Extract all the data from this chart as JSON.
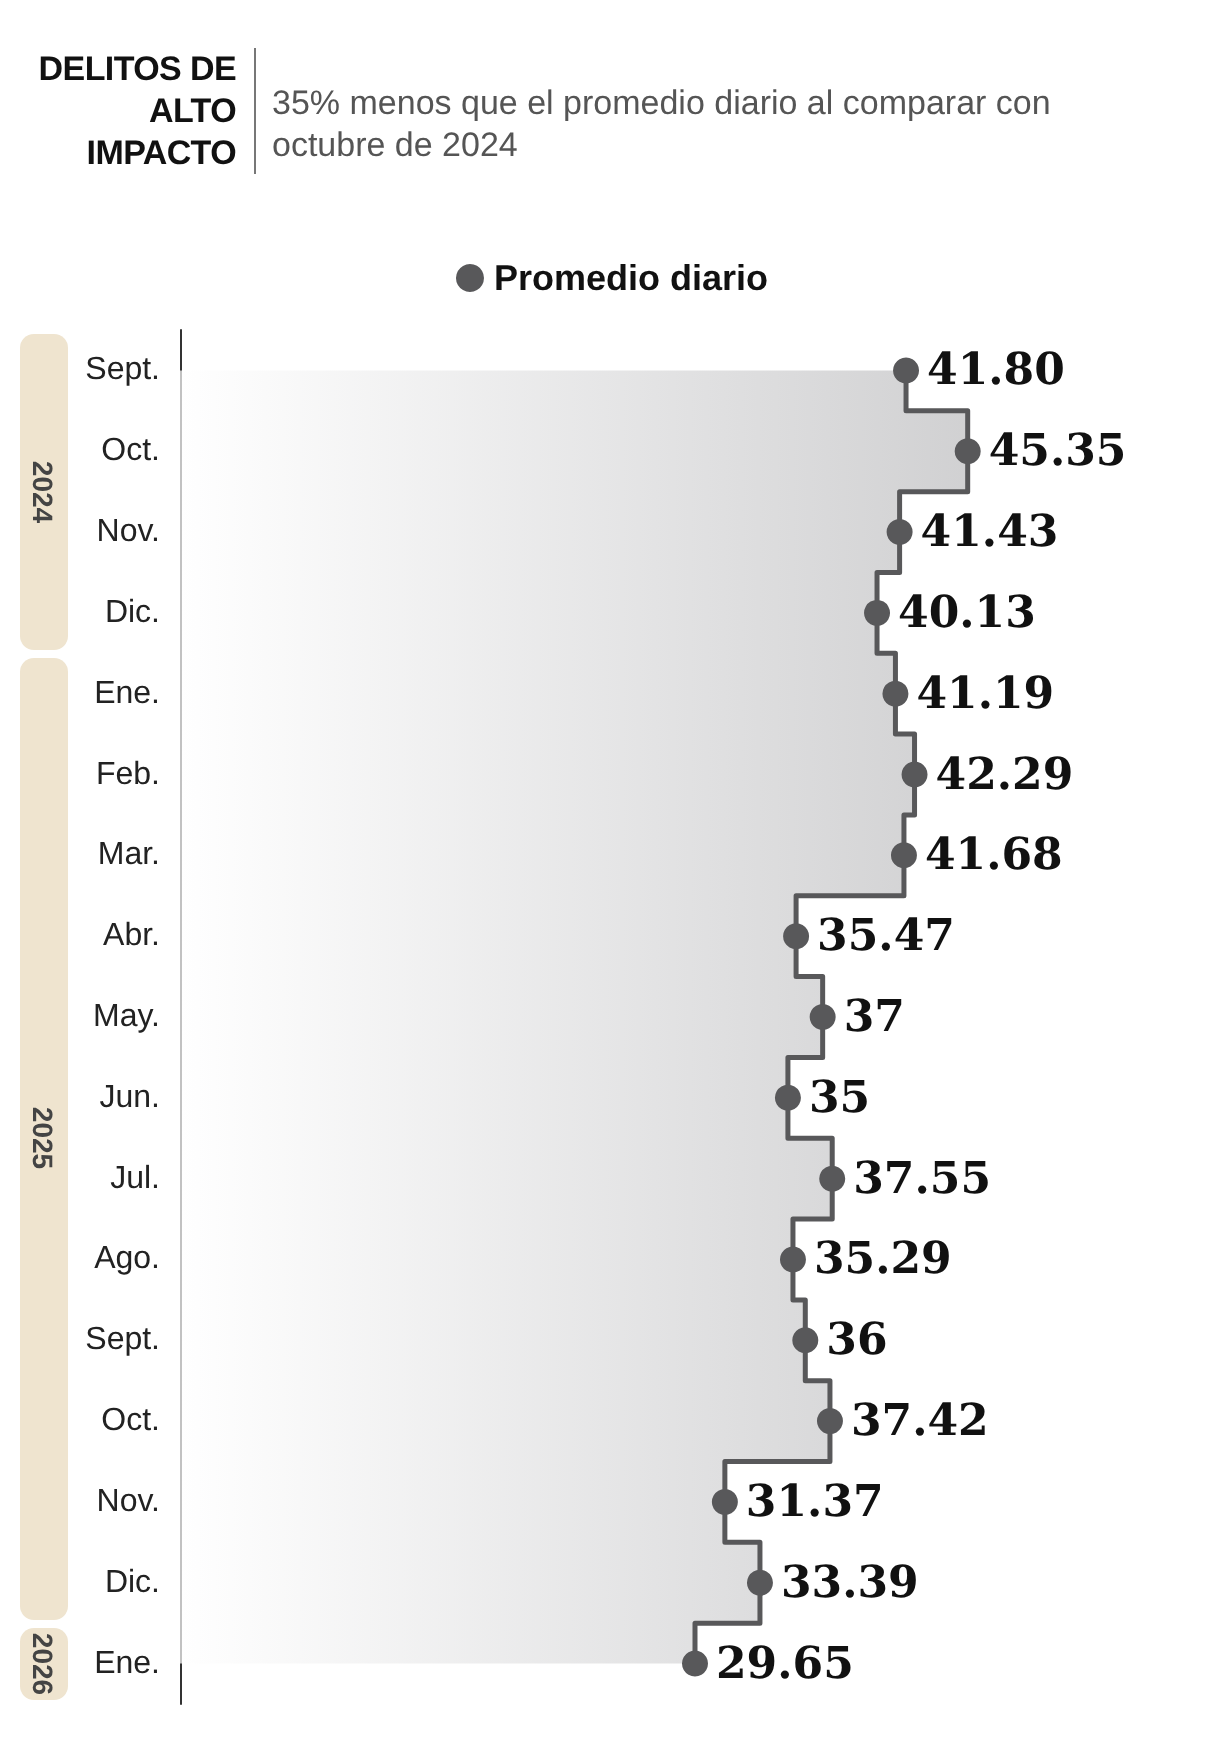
{
  "chart_data": {
    "type": "step",
    "orientation": "horizontal",
    "title": "DELITOS DE ALTO IMPACTO",
    "subtitle": "35% menos que el promedio diario al comparar con octubre de 2024",
    "categories": [
      "Sept.",
      "Oct.",
      "Nov.",
      "Dic.",
      "Ene.",
      "Feb.",
      "Mar.",
      "Abr.",
      "May.",
      "Jun.",
      "Jul.",
      "Ago.",
      "Sept.",
      "Oct.",
      "Nov.",
      "Dic.",
      "Ene."
    ],
    "series": [
      {
        "name": "Promedio diario",
        "color": "#58585a",
        "values": [
          41.8,
          45.35,
          41.43,
          40.13,
          41.19,
          42.29,
          41.68,
          35.47,
          37,
          35,
          37.55,
          35.29,
          36,
          37.42,
          31.37,
          33.39,
          29.65
        ],
        "value_labels": [
          "41.80",
          "45.35",
          "41.43",
          "40.13",
          "41.19",
          "42.29",
          "41.68",
          "35.47",
          "37",
          "35",
          "37.55",
          "35.29",
          "36",
          "37.42",
          "31.37",
          "33.39",
          "29.65"
        ]
      }
    ],
    "annotations": [
      "2024",
      "2025",
      "2026"
    ],
    "legend": "top",
    "marker": "circle",
    "grid": false
  }
}
